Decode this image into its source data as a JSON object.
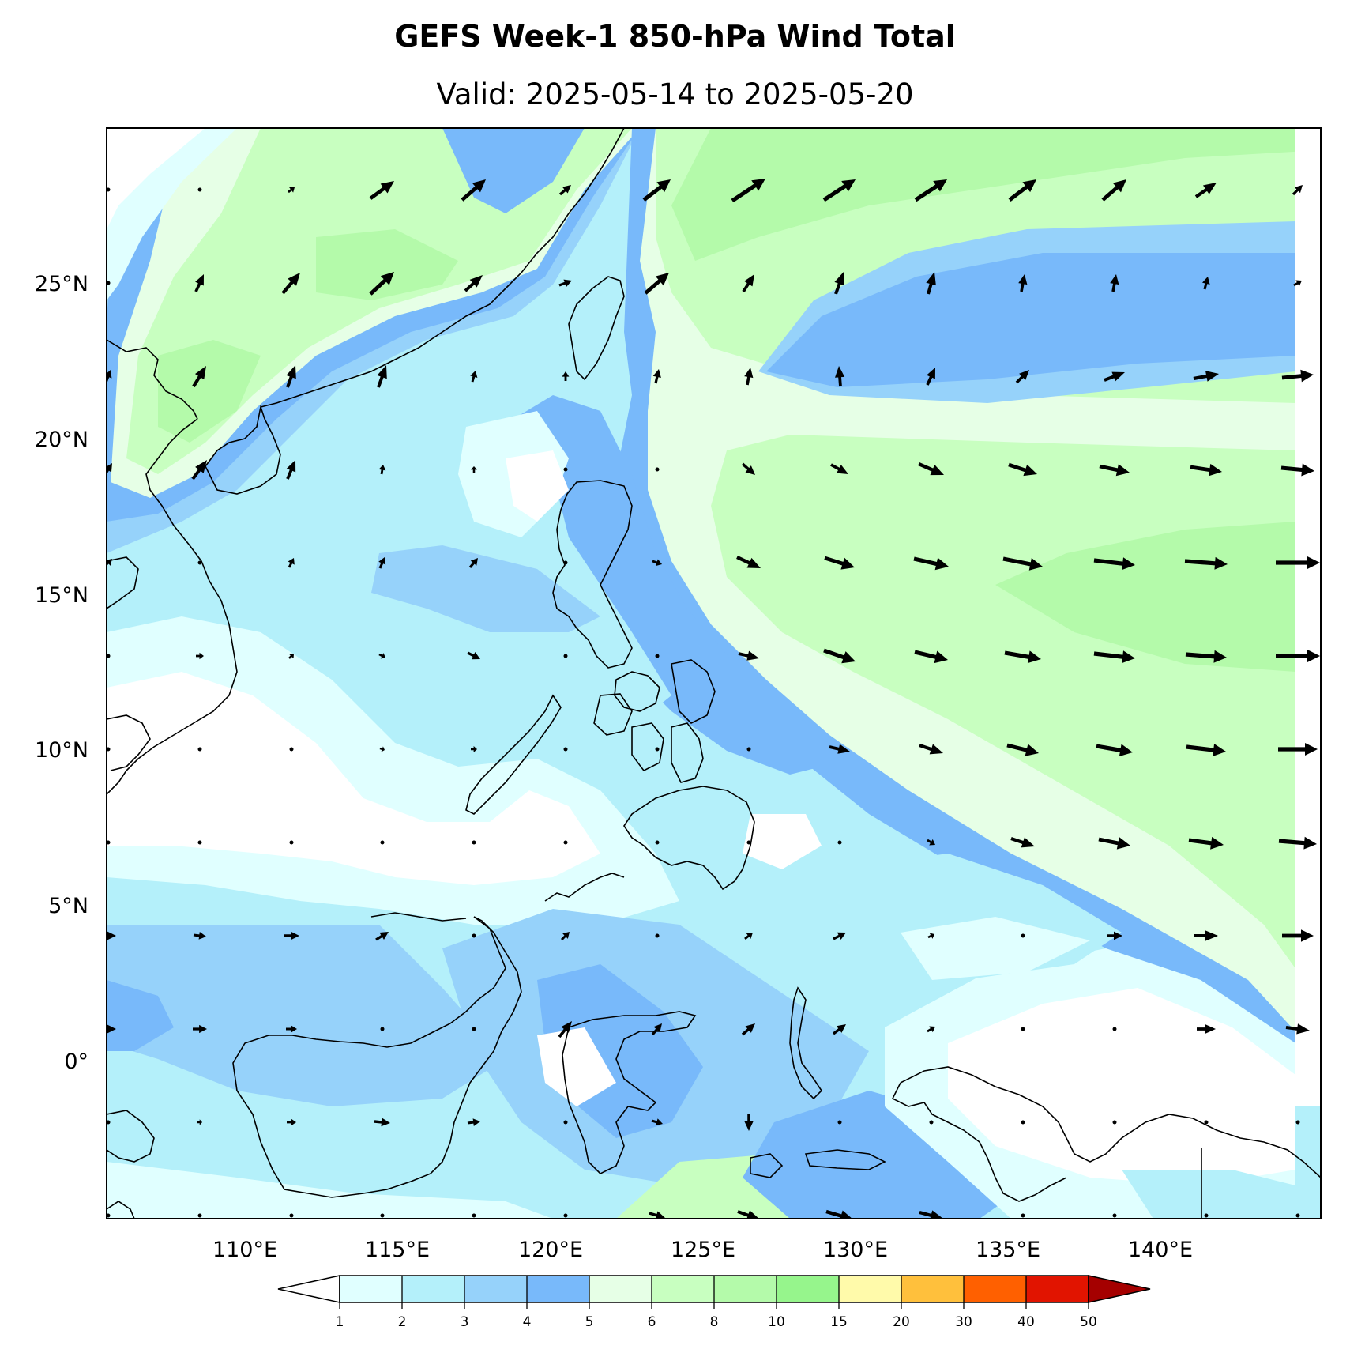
{
  "title": "GEFS Week-1 850-hPa Wind Total",
  "subtitle": "Valid: 2025-05-14 to 2025-05-20",
  "axes": {
    "lon_ticks": [
      "110°E",
      "115°E",
      "120°E",
      "125°E",
      "130°E",
      "135°E",
      "140°E"
    ],
    "lat_ticks": [
      "25°N",
      "20°N",
      "15°N",
      "10°N",
      "5°N",
      "0°"
    ]
  },
  "colorbar": {
    "levels": [
      "1",
      "2",
      "3",
      "4",
      "5",
      "6",
      "8",
      "10",
      "15",
      "20",
      "30",
      "40",
      "50"
    ],
    "colors": [
      "#e0ffff",
      "#b4f0fa",
      "#96d2fa",
      "#78b9fa",
      "#e6ffe6",
      "#c8ffc0",
      "#b4faaa",
      "#96f58c",
      "#fffaaa",
      "#ffc03c",
      "#ff6000",
      "#e11400",
      "#a50000"
    ],
    "under_color": "#ffffff",
    "over_color": "#a50000"
  },
  "map_colors": {
    "white": "#ffffff",
    "c1": "#e0ffff",
    "c2": "#b4f0fa",
    "c3": "#96d2fa",
    "c4": "#78b9fa",
    "c5": "#e6ffe6",
    "c6": "#c8ffc0",
    "c8": "#b4faaa"
  }
}
